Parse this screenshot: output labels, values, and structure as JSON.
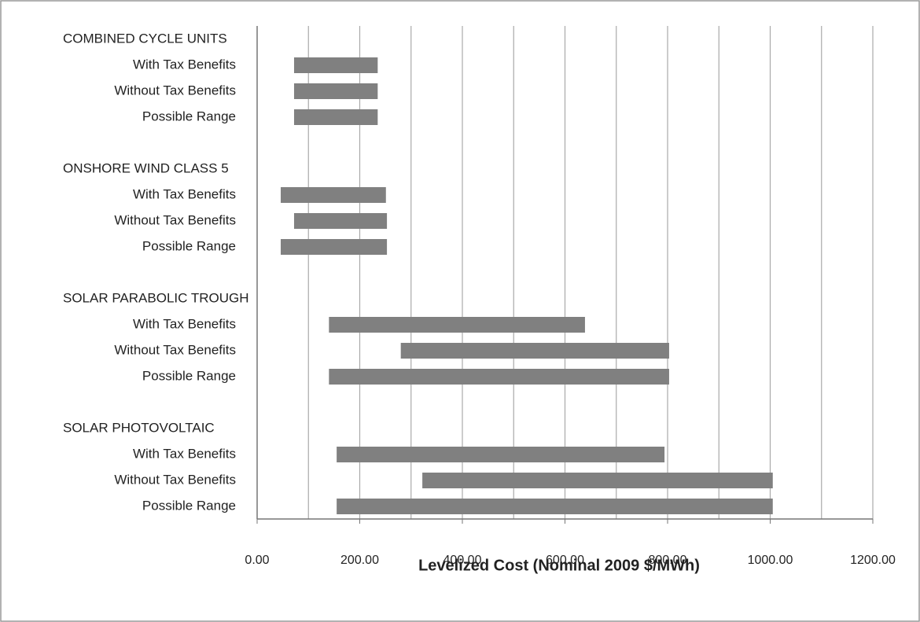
{
  "chart_data": {
    "type": "range-bar",
    "x_axis_label": "Levelized Cost (Nominal 2009 $/MWh)",
    "groups": [
      {
        "name": "COMBINED CYCLE UNITS",
        "categories": [
          "With Tax Benefits",
          "Without Tax Benefits",
          "Possible Range"
        ],
        "low": [
          72,
          72,
          72
        ],
        "high": [
          235,
          235,
          235
        ]
      },
      {
        "name": "ONSHORE WIND CLASS  5",
        "categories": [
          "With Tax Benefits",
          "Without Tax Benefits",
          "Possible Range"
        ],
        "low": [
          46,
          72,
          46
        ],
        "high": [
          251,
          253,
          253
        ]
      },
      {
        "name": "SOLAR PARABOLIC TROUGH",
        "categories": [
          "With Tax Benefits",
          "Without Tax Benefits",
          "Possible Range"
        ],
        "low": [
          140,
          280,
          140
        ],
        "high": [
          639,
          803,
          803
        ]
      },
      {
        "name": "SOLAR PHOTOVOLTAIC",
        "categories": [
          "With Tax Benefits",
          "Without Tax Benefits",
          "Possible Range"
        ],
        "low": [
          155,
          322,
          155
        ],
        "high": [
          794,
          1005,
          1005
        ]
      }
    ],
    "xlim": [
      0,
      1200
    ],
    "xticks": [
      {
        "value": 0,
        "label": "0.00"
      },
      {
        "value": 200,
        "label": "200.00"
      },
      {
        "value": 400,
        "label": "400.00"
      },
      {
        "value": 600,
        "label": "600.00"
      },
      {
        "value": 800,
        "label": "800.00"
      },
      {
        "value": 1000,
        "label": "1000.00"
      },
      {
        "value": 1200,
        "label": "1200.00"
      }
    ],
    "minor_xticks": [
      100,
      300,
      500,
      700,
      900,
      1100
    ],
    "grid": true,
    "color": "#808080"
  }
}
